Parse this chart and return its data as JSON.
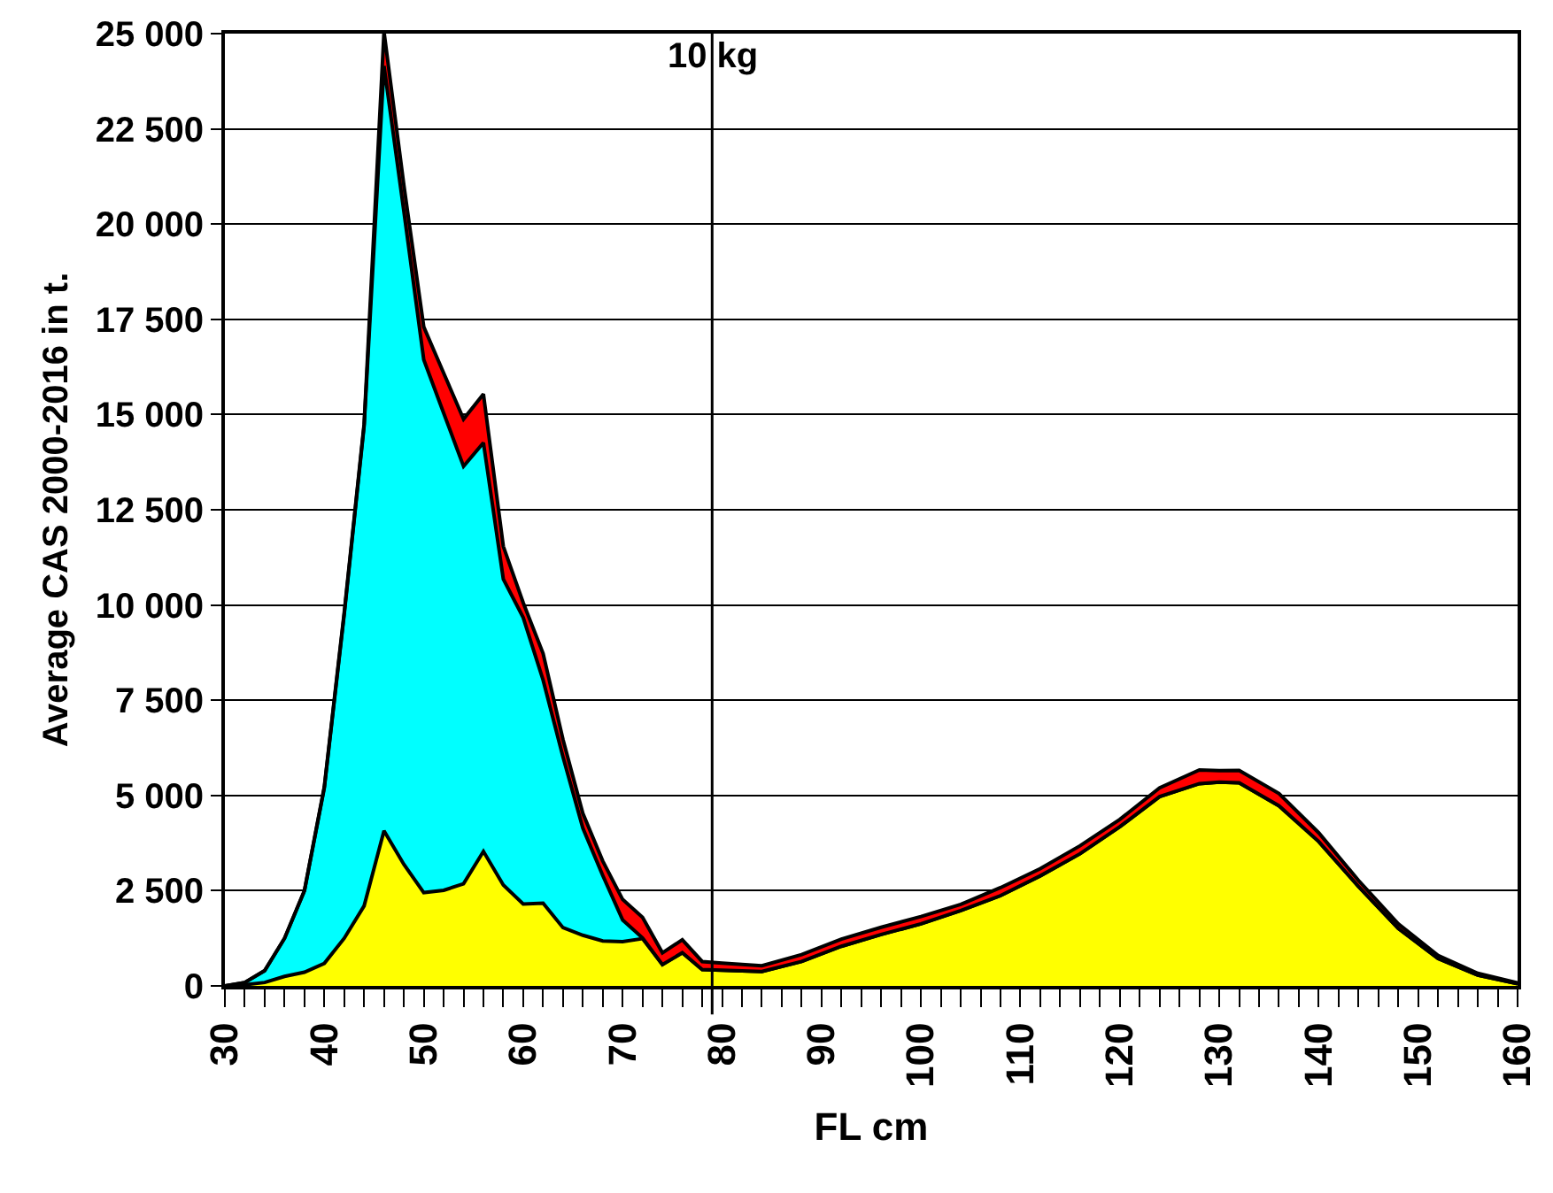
{
  "chart_data": {
    "type": "area",
    "stacked": true,
    "xlabel": "FL cm",
    "ylabel": "Average CAS 2000-2016 in t.",
    "x": [
      30,
      32,
      34,
      36,
      38,
      40,
      42,
      44,
      46,
      48,
      50,
      52,
      54,
      56,
      58,
      60,
      62,
      64,
      66,
      68,
      70,
      72,
      74,
      76,
      78,
      80,
      84,
      88,
      92,
      96,
      100,
      104,
      108,
      112,
      116,
      120,
      124,
      128,
      130,
      132,
      136,
      140,
      144,
      148,
      152,
      156,
      160
    ],
    "series": [
      {
        "color": "#ffff00",
        "values": [
          0,
          30,
          90,
          250,
          360,
          590,
          1250,
          2100,
          4070,
          3190,
          2450,
          2510,
          2680,
          3530,
          2650,
          2150,
          2170,
          1530,
          1330,
          1180,
          1160,
          1240,
          560,
          870,
          430,
          410,
          380,
          640,
          1040,
          1350,
          1630,
          1980,
          2370,
          2890,
          3470,
          4180,
          4970,
          5310,
          5350,
          5330,
          4730,
          3790,
          2610,
          1510,
          720,
          280,
          60
        ]
      },
      {
        "color": "#00ffff",
        "values": [
          0,
          60,
          310,
          1000,
          2140,
          4610,
          8500,
          12600,
          20080,
          17140,
          13990,
          12530,
          10960,
          10730,
          8030,
          7520,
          5860,
          4480,
          2810,
          1720,
          570,
          20,
          0,
          0,
          0,
          0,
          0,
          0,
          0,
          0,
          0,
          0,
          0,
          0,
          0,
          0,
          0,
          0,
          0,
          0,
          0,
          0,
          0,
          0,
          0,
          0,
          0
        ]
      },
      {
        "color": "#ff0000",
        "values": [
          0,
          0,
          0,
          0,
          0,
          30,
          50,
          50,
          900,
          690,
          860,
          1050,
          1240,
          1280,
          860,
          390,
          700,
          460,
          390,
          380,
          540,
          540,
          310,
          340,
          210,
          190,
          150,
          180,
          190,
          190,
          190,
          160,
          210,
          190,
          210,
          190,
          230,
          360,
          300,
          330,
          320,
          230,
          160,
          120,
          80,
          50,
          20
        ]
      }
    ],
    "xlim": [
      30,
      160
    ],
    "xticks": [
      30,
      {
        "value": 32,
        "label": null
      },
      {
        "value": 34,
        "label": null
      },
      {
        "value": 36,
        "label": null
      },
      {
        "value": 38,
        "label": null
      },
      40,
      {
        "value": 42,
        "label": null
      },
      {
        "value": 44,
        "label": null
      },
      {
        "value": 46,
        "label": null
      },
      {
        "value": 48,
        "label": null
      },
      50,
      {
        "value": 52,
        "label": null
      },
      {
        "value": 54,
        "label": null
      },
      {
        "value": 56,
        "label": null
      },
      {
        "value": 58,
        "label": null
      },
      60,
      {
        "value": 62,
        "label": null
      },
      {
        "value": 64,
        "label": null
      },
      {
        "value": 66,
        "label": null
      },
      {
        "value": 68,
        "label": null
      },
      70,
      {
        "value": 72,
        "label": null
      },
      {
        "value": 74,
        "label": null
      },
      {
        "value": 76,
        "label": null
      },
      {
        "value": 78,
        "label": null
      },
      80,
      {
        "value": 82,
        "label": null
      },
      {
        "value": 84,
        "label": null
      },
      {
        "value": 86,
        "label": null
      },
      {
        "value": 88,
        "label": null
      },
      90,
      {
        "value": 92,
        "label": null
      },
      {
        "value": 94,
        "label": null
      },
      {
        "value": 96,
        "label": null
      },
      {
        "value": 98,
        "label": null
      },
      100,
      {
        "value": 102,
        "label": null
      },
      {
        "value": 104,
        "label": null
      },
      {
        "value": 106,
        "label": null
      },
      {
        "value": 108,
        "label": null
      },
      110,
      {
        "value": 112,
        "label": null
      },
      {
        "value": 114,
        "label": null
      },
      {
        "value": 116,
        "label": null
      },
      {
        "value": 118,
        "label": null
      },
      120,
      {
        "value": 122,
        "label": null
      },
      {
        "value": 124,
        "label": null
      },
      {
        "value": 126,
        "label": null
      },
      {
        "value": 128,
        "label": null
      },
      130,
      {
        "value": 132,
        "label": null
      },
      {
        "value": 134,
        "label": null
      },
      {
        "value": 136,
        "label": null
      },
      {
        "value": 138,
        "label": null
      },
      140,
      {
        "value": 142,
        "label": null
      },
      {
        "value": 144,
        "label": null
      },
      {
        "value": 146,
        "label": null
      },
      {
        "value": 148,
        "label": null
      },
      150,
      {
        "value": 152,
        "label": null
      },
      {
        "value": 154,
        "label": null
      },
      {
        "value": 156,
        "label": null
      },
      {
        "value": 158,
        "label": null
      },
      160
    ],
    "ylim": [
      0,
      25000
    ],
    "yticks": [
      0,
      {
        "value": 2500,
        "label": "2 500"
      },
      {
        "value": 5000,
        "label": "5 000"
      },
      {
        "value": 7500,
        "label": "7 500"
      },
      {
        "value": 10000,
        "label": "10 000"
      },
      {
        "value": 12500,
        "label": "12 500"
      },
      {
        "value": 15000,
        "label": "15 000"
      },
      {
        "value": 17500,
        "label": "17 500"
      },
      {
        "value": 20000,
        "label": "20 000"
      },
      {
        "value": 22500,
        "label": "22 500"
      },
      {
        "value": 25000,
        "label": "25 000"
      }
    ],
    "grid": "y",
    "ref_lines": [
      {
        "axis": "x",
        "value": 79,
        "label": "10 kg"
      }
    ]
  }
}
